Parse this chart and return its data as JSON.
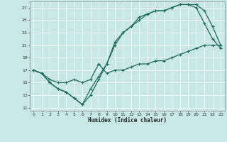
{
  "xlabel": "Humidex (Indice chaleur)",
  "background_color": "#c8e8e8",
  "grid_color": "#ffffff",
  "line_color": "#1a6b5a",
  "xlim": [
    -0.5,
    23.5
  ],
  "ylim": [
    10.5,
    28.0
  ],
  "xticks": [
    0,
    1,
    2,
    3,
    4,
    5,
    6,
    7,
    8,
    9,
    10,
    11,
    12,
    13,
    14,
    15,
    16,
    17,
    18,
    19,
    20,
    21,
    22,
    23
  ],
  "yticks": [
    11,
    13,
    15,
    17,
    19,
    21,
    23,
    25,
    27
  ],
  "line1_x": [
    0,
    1,
    2,
    3,
    4,
    5,
    6,
    7,
    8,
    9,
    10,
    11,
    12,
    13,
    14,
    15,
    16,
    17,
    18,
    19,
    20,
    21,
    22,
    23
  ],
  "line1_y": [
    17,
    16.5,
    15,
    14,
    13.5,
    12.5,
    11.5,
    13,
    15.5,
    18,
    21,
    23,
    24,
    25,
    26,
    26.5,
    26.5,
    27,
    27.5,
    27.5,
    27,
    24.5,
    22,
    20.5
  ],
  "line2_x": [
    0,
    1,
    2,
    3,
    4,
    5,
    6,
    7,
    8,
    9,
    10,
    11,
    12,
    13,
    14,
    15,
    16,
    17,
    18,
    19,
    20,
    21,
    22,
    23
  ],
  "line2_y": [
    17,
    16.5,
    15,
    14,
    13.5,
    12.5,
    11.5,
    14,
    16,
    18,
    21.5,
    23,
    24,
    25.5,
    26,
    26.5,
    26.5,
    27,
    27.5,
    27.5,
    27.5,
    26.5,
    24,
    21
  ],
  "line3_x": [
    0,
    1,
    2,
    3,
    4,
    5,
    6,
    7,
    8,
    9,
    10,
    11,
    12,
    13,
    14,
    15,
    16,
    17,
    18,
    19,
    20,
    21,
    22,
    23
  ],
  "line3_y": [
    17,
    16.5,
    15.5,
    15,
    15,
    15.5,
    15,
    15.5,
    18,
    16.5,
    17,
    17,
    17.5,
    18,
    18,
    18.5,
    18.5,
    19,
    19.5,
    20,
    20.5,
    21,
    21,
    21
  ]
}
